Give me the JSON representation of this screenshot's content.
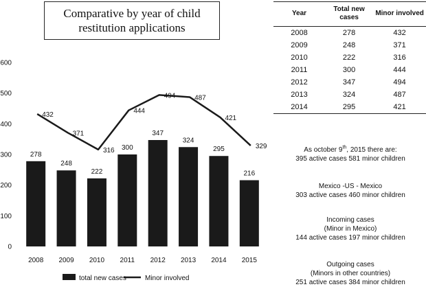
{
  "chart_data": {
    "type": "bar+line",
    "title": "Comparative by year of child restitution applications",
    "categories": [
      "2008",
      "2009",
      "2010",
      "2011",
      "2012",
      "2013",
      "2014",
      "2015"
    ],
    "series": [
      {
        "name": "total new cases",
        "kind": "bar",
        "values": [
          278,
          248,
          222,
          300,
          347,
          324,
          295,
          216
        ]
      },
      {
        "name": "Minor involved",
        "kind": "line",
        "values": [
          432,
          371,
          316,
          444,
          494,
          487,
          421,
          329
        ]
      }
    ],
    "ylim": [
      0,
      600
    ],
    "yticks": [
      "0",
      "100",
      "200",
      "300",
      "400",
      "500",
      "600"
    ],
    "xlabel": "",
    "ylabel": "",
    "legend": [
      "total new cases",
      "Minor involved"
    ],
    "colors": {
      "bar": "#1a1a1a",
      "line": "#1a1a1a"
    }
  },
  "table": {
    "headers": [
      "Year",
      "Total new cases",
      "Minor involved"
    ],
    "rows": [
      [
        "2008",
        "278",
        "432"
      ],
      [
        "2009",
        "248",
        "371"
      ],
      [
        "2010",
        "222",
        "316"
      ],
      [
        "2011",
        "300",
        "444"
      ],
      [
        "2012",
        "347",
        "494"
      ],
      [
        "2013",
        "324",
        "487"
      ],
      [
        "2014",
        "295",
        "421"
      ]
    ]
  },
  "notes": {
    "as_of_prefix": "As october 9",
    "as_of_sup": "th",
    "as_of_suffix": ", 2015 there are:",
    "as_of_counts": "395 active cases 581 minor children",
    "mexico_title": "Mexico -US - Mexico",
    "mexico_counts": "303 active cases 460 minor children",
    "incoming_title": "Incoming cases",
    "incoming_sub": "(Minor in Mexico)",
    "incoming_counts": "144 active cases 197 minor children",
    "outgoing_title": "Outgoing cases",
    "outgoing_sub": "(Minors in other countries)",
    "outgoing_counts": "251 active cases 384 minor children"
  }
}
